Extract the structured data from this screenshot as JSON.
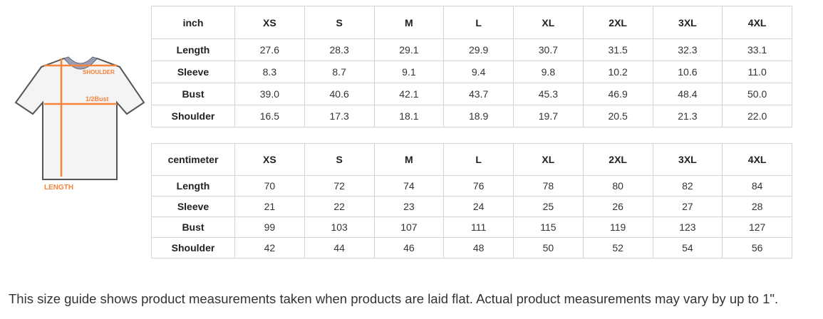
{
  "diagram": {
    "shoulder_label": "SHOULDER",
    "bust_label": "1/2Bust",
    "length_label": "LENGTH",
    "accent": "#f5843c"
  },
  "sizes": [
    "XS",
    "S",
    "M",
    "L",
    "XL",
    "2XL",
    "3XL",
    "4XL"
  ],
  "tables": [
    {
      "unit": "inch",
      "rows": [
        {
          "label": "Length",
          "values": [
            "27.6",
            "28.3",
            "29.1",
            "29.9",
            "30.7",
            "31.5",
            "32.3",
            "33.1"
          ]
        },
        {
          "label": "Sleeve",
          "values": [
            "8.3",
            "8.7",
            "9.1",
            "9.4",
            "9.8",
            "10.2",
            "10.6",
            "11.0"
          ]
        },
        {
          "label": "Bust",
          "values": [
            "39.0",
            "40.6",
            "42.1",
            "43.7",
            "45.3",
            "46.9",
            "48.4",
            "50.0"
          ]
        },
        {
          "label": "Shoulder",
          "values": [
            "16.5",
            "17.3",
            "18.1",
            "18.9",
            "19.7",
            "20.5",
            "21.3",
            "22.0"
          ]
        }
      ]
    },
    {
      "unit": "centimeter",
      "rows": [
        {
          "label": "Length",
          "values": [
            "70",
            "72",
            "74",
            "76",
            "78",
            "80",
            "82",
            "84"
          ]
        },
        {
          "label": "Sleeve",
          "values": [
            "21",
            "22",
            "23",
            "24",
            "25",
            "26",
            "27",
            "28"
          ]
        },
        {
          "label": "Bust",
          "values": [
            "99",
            "103",
            "107",
            "111",
            "115",
            "119",
            "123",
            "127"
          ]
        },
        {
          "label": "Shoulder",
          "values": [
            "42",
            "44",
            "46",
            "48",
            "50",
            "52",
            "54",
            "56"
          ]
        }
      ]
    }
  ],
  "note": "This size guide shows product measurements taken when products are laid flat. Actual product measurements may vary by up to 1\"."
}
